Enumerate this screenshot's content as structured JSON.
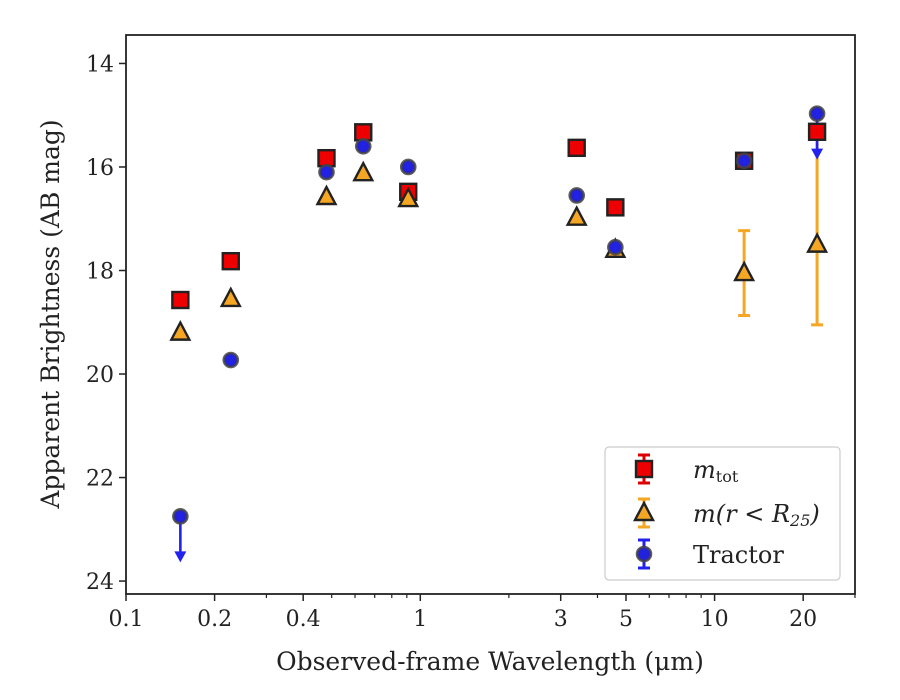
{
  "chart_data": {
    "type": "scatter",
    "xlabel": "Observed-frame Wavelength (μm)",
    "ylabel": "Apparent Brightness (AB mag)",
    "x_scale": "log",
    "xlim": [
      0.1,
      30
    ],
    "ylim": [
      24.25,
      13.45
    ],
    "y_inverted": true,
    "x_ticks": [
      {
        "value": 0.1,
        "label": "0.1"
      },
      {
        "value": 0.2,
        "label": "0.2"
      },
      {
        "value": 0.4,
        "label": "0.4"
      },
      {
        "value": 1,
        "label": "1"
      },
      {
        "value": 3,
        "label": "3"
      },
      {
        "value": 5,
        "label": "5"
      },
      {
        "value": 10,
        "label": "10"
      },
      {
        "value": 20,
        "label": "20"
      }
    ],
    "y_ticks": [
      {
        "value": 14,
        "label": "14"
      },
      {
        "value": 16,
        "label": "16"
      },
      {
        "value": 18,
        "label": "18"
      },
      {
        "value": 20,
        "label": "20"
      },
      {
        "value": 22,
        "label": "22"
      },
      {
        "value": 24,
        "label": "24"
      }
    ],
    "grid": false,
    "legend_position": "bottom-right",
    "series": [
      {
        "name": "m_tot",
        "marker": "square",
        "color": "#ee0000",
        "err_color": "#dd0000",
        "points": [
          {
            "x": 0.153,
            "y": 18.57
          },
          {
            "x": 0.227,
            "y": 17.82
          },
          {
            "x": 0.48,
            "y": 15.83
          },
          {
            "x": 0.64,
            "y": 15.33
          },
          {
            "x": 0.91,
            "y": 16.48
          },
          {
            "x": 3.4,
            "y": 15.63
          },
          {
            "x": 4.6,
            "y": 16.78
          },
          {
            "x": 12.6,
            "y": 15.88
          },
          {
            "x": 22.3,
            "y": 15.32
          }
        ]
      },
      {
        "name": "m(r<R_25)",
        "marker": "triangle",
        "color": "#f5a623",
        "err_color": "#f5a623",
        "points": [
          {
            "x": 0.153,
            "y": 19.2
          },
          {
            "x": 0.227,
            "y": 18.55
          },
          {
            "x": 0.48,
            "y": 16.58
          },
          {
            "x": 0.64,
            "y": 16.12
          },
          {
            "x": 0.91,
            "y": 16.62
          },
          {
            "x": 3.4,
            "y": 16.98
          },
          {
            "x": 4.6,
            "y": 17.6
          },
          {
            "x": 12.6,
            "y": 18.05,
            "err_low": 0.82,
            "err_high": 0.82
          },
          {
            "x": 22.3,
            "y": 17.5,
            "err_low": 2.3,
            "err_high": 1.55
          }
        ]
      },
      {
        "name": "Tractor",
        "marker": "circle",
        "color": "#2222dd",
        "err_color": "#2222ee",
        "points": [
          {
            "x": 0.153,
            "y": 22.75,
            "upper_limit": true
          },
          {
            "x": 0.227,
            "y": 19.73
          },
          {
            "x": 0.48,
            "y": 16.1
          },
          {
            "x": 0.64,
            "y": 15.6
          },
          {
            "x": 0.91,
            "y": 16.0
          },
          {
            "x": 3.4,
            "y": 16.55
          },
          {
            "x": 4.6,
            "y": 17.55
          },
          {
            "x": 12.6,
            "y": 15.88
          },
          {
            "x": 22.3,
            "y": 14.97,
            "upper_limit": true
          }
        ]
      }
    ]
  },
  "legend": {
    "entries": [
      {
        "base": "m",
        "sub": "tot",
        "marker": "square"
      },
      {
        "prefix": "m(r < R",
        "sub": "25",
        "suffix": ")",
        "marker": "triangle"
      },
      {
        "text": "Tractor",
        "marker": "circle"
      }
    ]
  }
}
